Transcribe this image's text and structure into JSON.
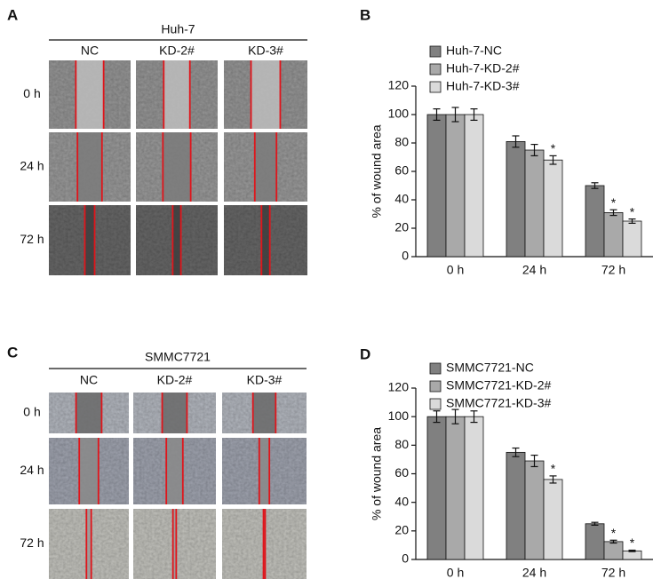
{
  "figure": {
    "panels": [
      {
        "label": "A",
        "title": "Huh-7",
        "columns": [
          "NC",
          "KD-2#",
          "KD-3#"
        ],
        "rows": [
          "0 h",
          "24 h",
          "72 h"
        ]
      },
      {
        "label": "C",
        "title": "SMMC7721",
        "columns": [
          "NC",
          "KD-2#",
          "KD-3#"
        ],
        "rows": [
          "0 h",
          "24 h",
          "72 h"
        ]
      }
    ]
  },
  "chart_data": [
    {
      "type": "bar",
      "label": "B",
      "ylabel": "% of wound area",
      "categories": [
        "0 h",
        "24 h",
        "72 h"
      ],
      "series": [
        {
          "name": "Huh-7-NC",
          "color": "#808080",
          "values": [
            100,
            81,
            50
          ],
          "errors": [
            4,
            4,
            2
          ],
          "significance": [
            null,
            null,
            null
          ]
        },
        {
          "name": "Huh-7-KD-2#",
          "color": "#a9a9a9",
          "values": [
            100,
            75,
            31
          ],
          "errors": [
            5,
            4,
            2
          ],
          "significance": [
            null,
            null,
            "*"
          ]
        },
        {
          "name": "Huh-7-KD-3#",
          "color": "#dadada",
          "values": [
            100,
            68,
            25
          ],
          "errors": [
            4,
            3,
            1.5
          ],
          "significance": [
            null,
            "*",
            "*"
          ]
        }
      ],
      "ylim": [
        0,
        120
      ],
      "yticks": [
        0,
        20,
        40,
        60,
        80,
        100,
        120
      ]
    },
    {
      "type": "bar",
      "label": "D",
      "ylabel": "% of wound area",
      "categories": [
        "0 h",
        "24 h",
        "72 h"
      ],
      "series": [
        {
          "name": "SMMC7721-NC",
          "color": "#808080",
          "values": [
            100,
            75,
            25
          ],
          "errors": [
            4,
            3,
            1
          ],
          "significance": [
            null,
            null,
            null
          ]
        },
        {
          "name": "SMMC7721-KD-2#",
          "color": "#a9a9a9",
          "values": [
            100,
            69,
            12.5
          ],
          "errors": [
            5,
            4,
            1
          ],
          "significance": [
            null,
            null,
            "*"
          ]
        },
        {
          "name": "SMMC7721-KD-3#",
          "color": "#dadada",
          "values": [
            100,
            56,
            6
          ],
          "errors": [
            4,
            2.5,
            0.5
          ],
          "significance": [
            null,
            "*",
            "*"
          ]
        }
      ],
      "ylim": [
        0,
        120
      ],
      "yticks": [
        0,
        20,
        40,
        60,
        80,
        100,
        120
      ]
    }
  ]
}
